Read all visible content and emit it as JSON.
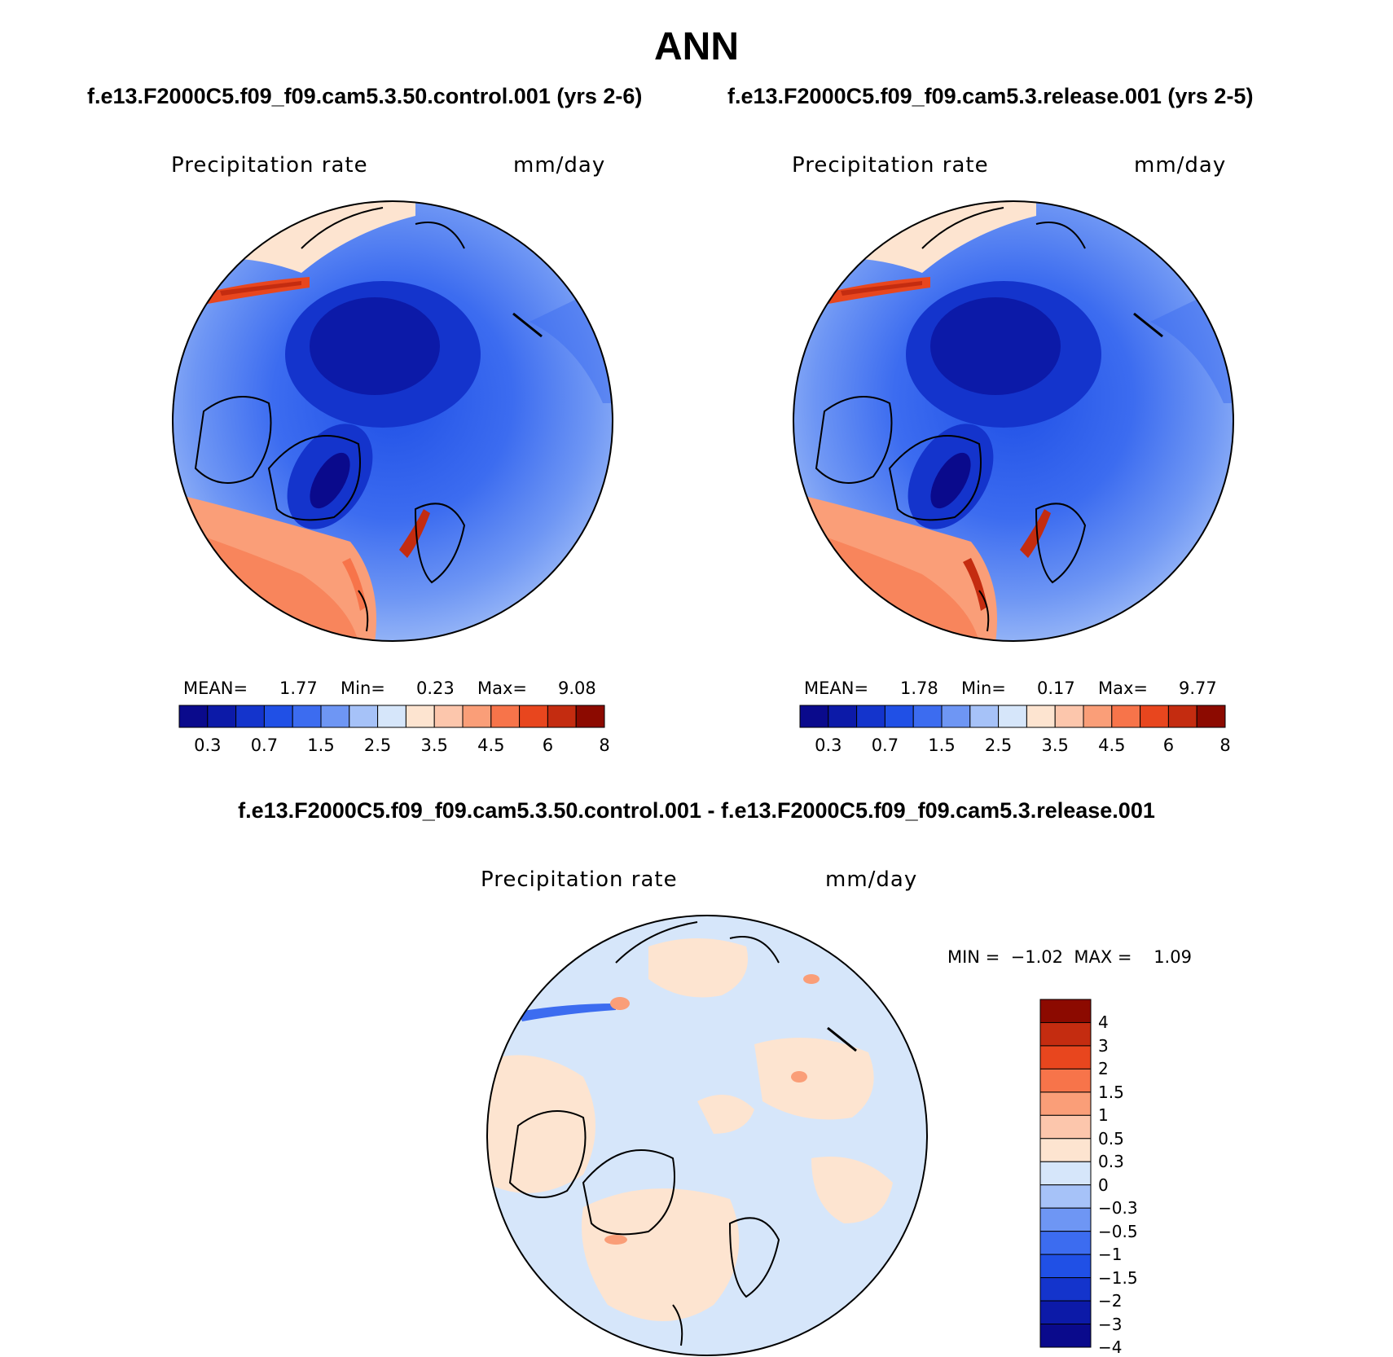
{
  "title": "ANN",
  "panel_left": {
    "case": "f.e13.F2000C5.f09_f09.cam5.3.50.control.001 (yrs 2-6)",
    "variable": "Precipitation rate",
    "units": "mm/day",
    "mean_label": "MEAN=",
    "mean_value": "1.77",
    "min_label": "Min=",
    "min_value": "0.23",
    "max_label": "Max=",
    "max_value": "9.08"
  },
  "panel_right": {
    "case": "f.e13.F2000C5.f09_f09.cam5.3.release.001 (yrs 2-5)",
    "variable": "Precipitation rate",
    "units": "mm/day",
    "mean_label": "MEAN=",
    "mean_value": "1.78",
    "min_label": "Min=",
    "min_value": "0.17",
    "max_label": "Max=",
    "max_value": "9.77"
  },
  "panel_diff": {
    "case": "f.e13.F2000C5.f09_f09.cam5.3.50.control.001 - f.e13.F2000C5.f09_f09.cam5.3.release.001",
    "variable": "Precipitation rate",
    "units": "mm/day",
    "minmax_text": "MIN =  −1.02  MAX =    1.09"
  },
  "colorbar_abs": {
    "colors": [
      "#0a0a8c",
      "#0c1aa8",
      "#1434cc",
      "#2050e6",
      "#3c6cf0",
      "#6e96f4",
      "#a6c2f8",
      "#d6e6fa",
      "#fde4d0",
      "#fcc6ac",
      "#fa9e78",
      "#f7744a",
      "#e8461e",
      "#c42c10",
      "#8c0a00"
    ],
    "ticks": [
      "0.3",
      "0.7",
      "1.5",
      "2.5",
      "3.5",
      "4.5",
      "6",
      "8"
    ]
  },
  "colorbar_diff": {
    "colors": [
      "#8c0a00",
      "#c42c10",
      "#e8461e",
      "#f7744a",
      "#fa9e78",
      "#fcc6ac",
      "#fde4d0",
      "#d6e6fa",
      "#a6c2f8",
      "#6e96f4",
      "#3c6cf0",
      "#2050e6",
      "#1434cc",
      "#0c1aa8",
      "#0a0a8c"
    ],
    "ticks": [
      "4",
      "3",
      "2",
      "1.5",
      "1",
      "0.5",
      "0.3",
      "0",
      "−0.3",
      "−0.5",
      "−1",
      "−1.5",
      "−2",
      "−3",
      "−4"
    ]
  }
}
